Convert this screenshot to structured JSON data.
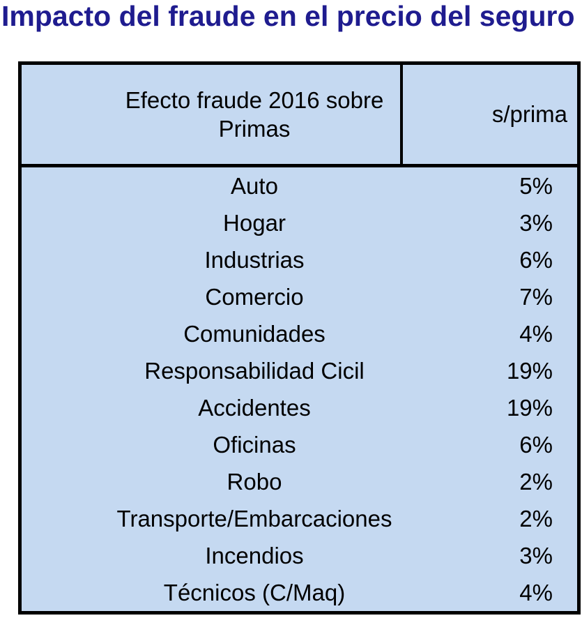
{
  "page": {
    "title": "Impacto del fraude en el precio del seguro"
  },
  "table": {
    "header": {
      "category_line1": "Efecto fraude 2016 sobre",
      "category_line2": "Primas",
      "value_col": "s/prima"
    },
    "rows": [
      {
        "label": "Auto",
        "value": "5%"
      },
      {
        "label": "Hogar",
        "value": "3%"
      },
      {
        "label": "Industrias",
        "value": "6%"
      },
      {
        "label": "Comercio",
        "value": "7%"
      },
      {
        "label": "Comunidades",
        "value": "4%"
      },
      {
        "label": "Responsabilidad Cicil",
        "value": "19%"
      },
      {
        "label": "Accidentes",
        "value": "19%"
      },
      {
        "label": "Oficinas",
        "value": "6%"
      },
      {
        "label": "Robo",
        "value": "2%"
      },
      {
        "label": "Transporte/Embarcaciones",
        "value": "2%"
      },
      {
        "label": "Incendios",
        "value": "3%"
      },
      {
        "label": "Técnicos (C/Maq)",
        "value": "4%"
      }
    ]
  },
  "colors": {
    "title_color": "#1F1C8F",
    "border_color": "#000000",
    "cell_fill": "#C5D9F1",
    "text_color": "#000000"
  },
  "chart_data": {
    "type": "table",
    "title": "Impacto del fraude en el precio del seguro",
    "columns": [
      "Efecto fraude 2016 sobre Primas",
      "s/prima"
    ],
    "categories": [
      "Auto",
      "Hogar",
      "Industrias",
      "Comercio",
      "Comunidades",
      "Responsabilidad Cicil",
      "Accidentes",
      "Oficinas",
      "Robo",
      "Transporte/Embarcaciones",
      "Incendios",
      "Técnicos (C/Maq)"
    ],
    "values_pct": [
      5,
      3,
      6,
      7,
      4,
      19,
      19,
      6,
      2,
      2,
      3,
      4
    ],
    "value_format": "percent",
    "grid": "outer-and-header-only",
    "legend_position": "none"
  }
}
